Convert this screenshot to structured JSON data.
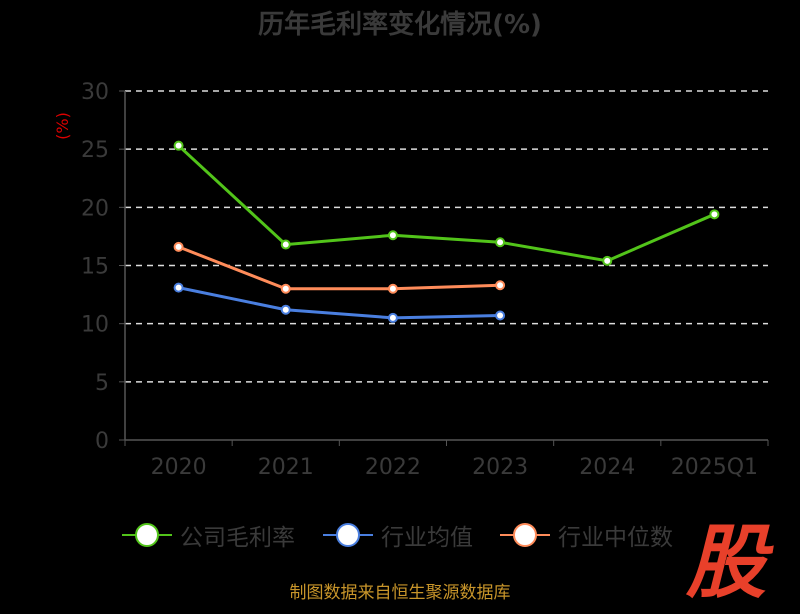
{
  "chart_data": {
    "type": "line",
    "title": "历年毛利率变化情况(%)",
    "ylabel": "(%)",
    "xlabel": "",
    "categories": [
      "2020",
      "2021",
      "2022",
      "2023",
      "2024",
      "2025Q1"
    ],
    "ylim": [
      0,
      30
    ],
    "yticks": [
      0,
      5,
      10,
      15,
      20,
      25,
      30
    ],
    "grid": true,
    "legend_position": "bottom",
    "series": [
      {
        "name": "公司毛利率",
        "color": "#52c41a",
        "values": [
          25.3,
          16.8,
          17.6,
          17.0,
          15.4,
          19.4
        ]
      },
      {
        "name": "行业均值",
        "color": "#4a7fe0",
        "values": [
          13.1,
          11.2,
          10.5,
          10.7,
          null,
          null
        ]
      },
      {
        "name": "行业中位数",
        "color": "#ff8c5a",
        "values": [
          16.6,
          13.0,
          13.0,
          13.3,
          null,
          null
        ]
      }
    ]
  },
  "source": "制图数据来自恒生聚源数据库",
  "logo_text": "股"
}
